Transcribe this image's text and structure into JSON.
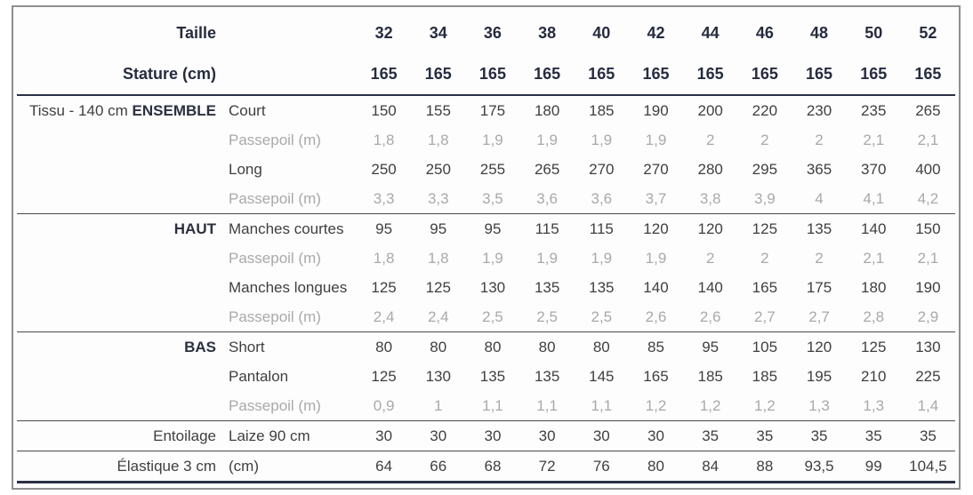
{
  "table": {
    "header": {
      "taille_label": "Taille",
      "stature_label": "Stature (cm)",
      "sizes": [
        "32",
        "34",
        "36",
        "38",
        "40",
        "42",
        "44",
        "46",
        "48",
        "50",
        "52"
      ],
      "statures": [
        "165",
        "165",
        "165",
        "165",
        "165",
        "165",
        "165",
        "165",
        "165",
        "165",
        "165"
      ]
    },
    "groups": [
      {
        "label": "Tissu - 140 cm ",
        "label_bold": "ENSEMBLE",
        "rows": [
          {
            "label": "Court",
            "muted": false,
            "values": [
              "150",
              "155",
              "175",
              "180",
              "185",
              "190",
              "200",
              "220",
              "230",
              "235",
              "265"
            ]
          },
          {
            "label": "Passepoil (m)",
            "muted": true,
            "values": [
              "1,8",
              "1,8",
              "1,9",
              "1,9",
              "1,9",
              "1,9",
              "2",
              "2",
              "2",
              "2,1",
              "2,1"
            ]
          },
          {
            "label": "Long",
            "muted": false,
            "values": [
              "250",
              "250",
              "255",
              "265",
              "270",
              "270",
              "280",
              "295",
              "365",
              "370",
              "400"
            ]
          },
          {
            "label": "Passepoil (m)",
            "muted": true,
            "values": [
              "3,3",
              "3,3",
              "3,5",
              "3,6",
              "3,6",
              "3,7",
              "3,8",
              "3,9",
              "4",
              "4,1",
              "4,2"
            ]
          }
        ]
      },
      {
        "label": "",
        "label_bold": "HAUT",
        "rows": [
          {
            "label": "Manches courtes",
            "muted": false,
            "values": [
              "95",
              "95",
              "95",
              "115",
              "115",
              "120",
              "120",
              "125",
              "135",
              "140",
              "150"
            ]
          },
          {
            "label": "Passepoil (m)",
            "muted": true,
            "values": [
              "1,8",
              "1,8",
              "1,9",
              "1,9",
              "1,9",
              "1,9",
              "2",
              "2",
              "2",
              "2,1",
              "2,1"
            ]
          },
          {
            "label": "Manches longues",
            "muted": false,
            "values": [
              "125",
              "125",
              "130",
              "135",
              "135",
              "140",
              "140",
              "165",
              "175",
              "180",
              "190"
            ]
          },
          {
            "label": "Passepoil (m)",
            "muted": true,
            "values": [
              "2,4",
              "2,4",
              "2,5",
              "2,5",
              "2,5",
              "2,6",
              "2,6",
              "2,7",
              "2,7",
              "2,8",
              "2,9"
            ]
          }
        ]
      },
      {
        "label": "",
        "label_bold": "BAS",
        "rows": [
          {
            "label": "Short",
            "muted": false,
            "values": [
              "80",
              "80",
              "80",
              "80",
              "80",
              "85",
              "95",
              "105",
              "120",
              "125",
              "130"
            ]
          },
          {
            "label": "Pantalon",
            "muted": false,
            "values": [
              "125",
              "130",
              "135",
              "135",
              "145",
              "165",
              "185",
              "185",
              "195",
              "210",
              "225"
            ]
          },
          {
            "label": "Passepoil (m)",
            "muted": true,
            "values": [
              "0,9",
              "1",
              "1,1",
              "1,1",
              "1,1",
              "1,2",
              "1,2",
              "1,2",
              "1,3",
              "1,3",
              "1,4"
            ]
          }
        ]
      },
      {
        "label": "Entoilage",
        "label_bold": "",
        "rows": [
          {
            "label": "Laize 90 cm",
            "muted": false,
            "values": [
              "30",
              "30",
              "30",
              "30",
              "30",
              "30",
              "35",
              "35",
              "35",
              "35",
              "35"
            ]
          }
        ]
      },
      {
        "label": "Élastique 3 cm",
        "label_bold": "",
        "rows": [
          {
            "label": "(cm)",
            "muted": false,
            "values": [
              "64",
              "66",
              "68",
              "72",
              "76",
              "80",
              "84",
              "88",
              "93,5",
              "99",
              "104,5"
            ]
          }
        ]
      }
    ]
  },
  "colors": {
    "header_text": "#262c3f",
    "body_text": "#3f3f3f",
    "muted_text": "#a9a9a9",
    "dark_rule": "#2b3044",
    "group_separator": "#4a4a4a",
    "frame_border": "#8f8f8f"
  }
}
